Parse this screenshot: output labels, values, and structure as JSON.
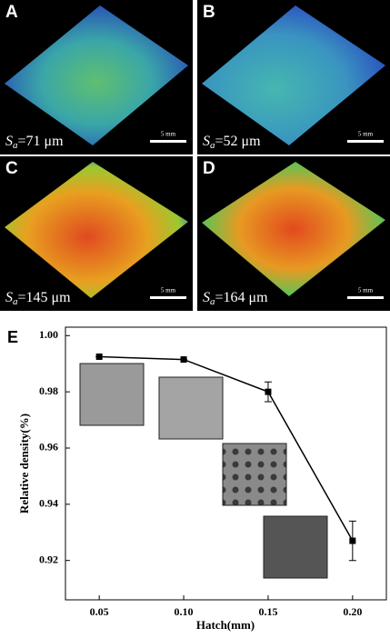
{
  "panels": [
    {
      "label": "A",
      "sa_symbol": "S",
      "sa_sub": "a",
      "sa_rest": "=71 μm",
      "scale": "5 mm"
    },
    {
      "label": "B",
      "sa_symbol": "S",
      "sa_sub": "a",
      "sa_rest": "=52 μm",
      "scale": "5 mm"
    },
    {
      "label": "C",
      "sa_symbol": "S",
      "sa_sub": "a",
      "sa_rest": "=145 μm",
      "scale": "5 mm"
    },
    {
      "label": "D",
      "sa_symbol": "S",
      "sa_sub": "a",
      "sa_rest": "=164 μm",
      "scale": "5 mm"
    }
  ],
  "chart_data": {
    "type": "line",
    "panel_label": "E",
    "x_label": "Hatch(mm)",
    "y_label": "Relative density(%)",
    "x": [
      0.05,
      0.1,
      0.15,
      0.2
    ],
    "series": [
      {
        "color": "#000000",
        "values": [
          0.9925,
          0.9915,
          0.98,
          0.927
        ],
        "errors": [
          0,
          0,
          0.0035,
          0.007
        ]
      }
    ],
    "xlim": [
      0.03,
      0.22
    ],
    "ylim": [
      0.906,
      1.003
    ],
    "xticks": [
      0.05,
      {
        "value": 0.1,
        "label": "0.10"
      },
      0.15,
      {
        "value": 0.2,
        "label": "0.20"
      }
    ],
    "yticks": [
      0.92,
      0.94,
      0.96,
      0.98,
      {
        "value": 1,
        "label": "1.00"
      }
    ]
  }
}
